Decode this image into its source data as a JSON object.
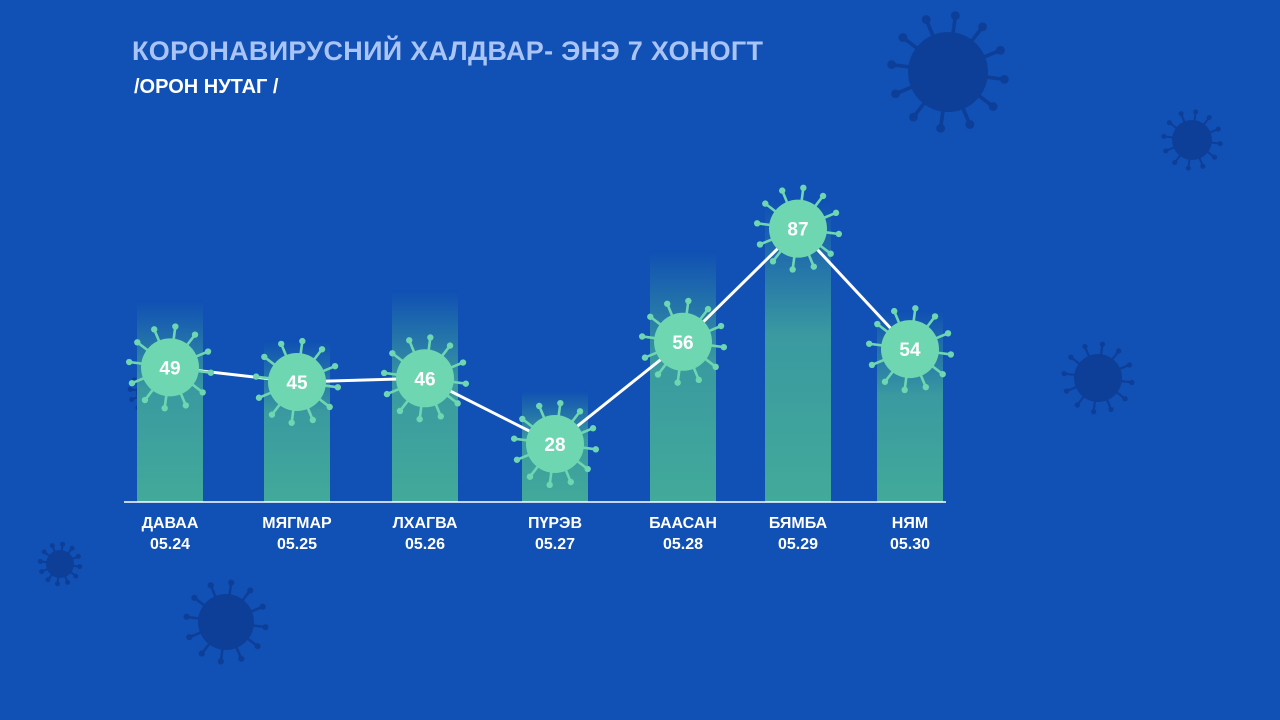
{
  "title": "КОРОНАВИРУСНИЙ ХАЛДВАР- ЭНЭ 7 ХОНОГТ",
  "subtitle": "/ОРОН НУТАГ /",
  "colors": {
    "background": "#1150b4",
    "title": "#a9c4f5",
    "bar_top": "#0f4fb4",
    "bar_bottom": "#42aa9a",
    "virus": "#6ed6b0",
    "line": "#ffffff",
    "decor_virus": "#0d3f99"
  },
  "chart_data": {
    "type": "bar",
    "title": "КОРОНАВИРУСНИЙ ХАЛДВАР- ЭНЭ 7 ХОНОГТ",
    "subtitle": "/ОРОН НУТАГ /",
    "categories": [
      "ДАВАА",
      "МЯГМАР",
      "ЛХАГВА",
      "ПҮРЭВ",
      "БААСАН",
      "БЯМБА",
      "НЯМ"
    ],
    "dates": [
      "05.24",
      "05.25",
      "05.26",
      "05.27",
      "05.28",
      "05.29",
      "05.30"
    ],
    "values": [
      49,
      45,
      46,
      28,
      56,
      87,
      54
    ],
    "overlay": "line",
    "grid": false,
    "legend": "none"
  }
}
